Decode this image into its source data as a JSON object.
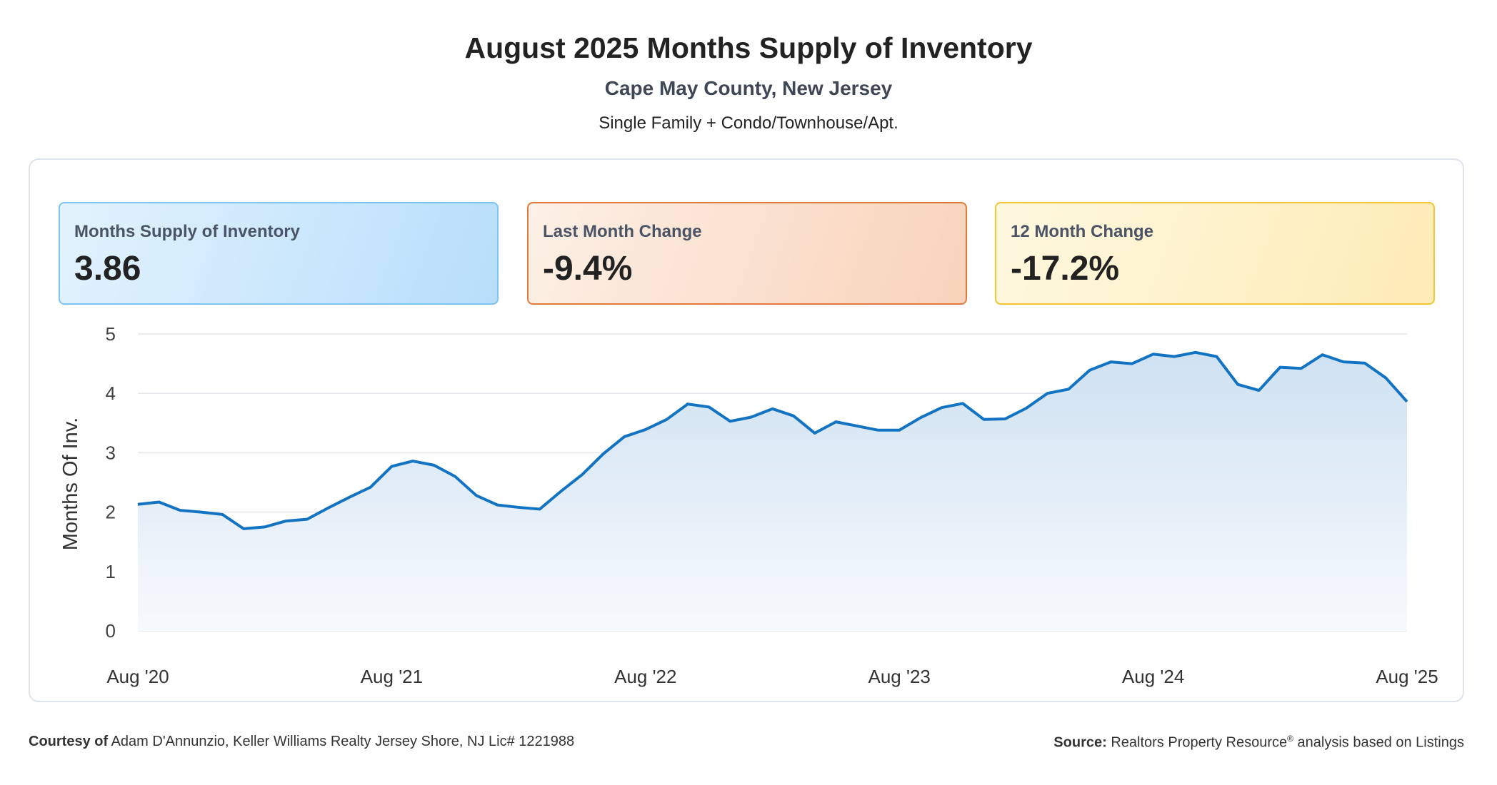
{
  "header": {
    "title": "August 2025 Months Supply of Inventory",
    "subtitle": "Cape May County, New Jersey",
    "subtitle2": "Single Family + Condo/Townhouse/Apt."
  },
  "cards": [
    {
      "label": "Months Supply of Inventory",
      "value": "3.86"
    },
    {
      "label": "Last Month Change",
      "value": "-9.4%"
    },
    {
      "label": "12 Month Change",
      "value": "-17.2%"
    }
  ],
  "footer": {
    "courtesy_label": "Courtesy of",
    "courtesy_text": "Adam D'Annunzio, Keller Williams Realty Jersey Shore, NJ Lic# 1221988",
    "source_label": "Source:",
    "source_text": "Realtors Property Resource",
    "source_mark": "®",
    "source_suffix": " analysis based on Listings"
  },
  "colors": {
    "line": "#1273c2",
    "area_top": "#cfe1f2",
    "area_bottom": "#f7fafd",
    "grid": "#e3e6ea"
  },
  "chart_data": {
    "type": "area",
    "title": "",
    "ylabel": "Months Of Inv.",
    "xlabel": "",
    "ylim": [
      0,
      5
    ],
    "yticks": [
      0,
      1,
      2,
      3,
      4,
      5
    ],
    "xticks": [
      "Aug '20",
      "Aug '21",
      "Aug '22",
      "Aug '23",
      "Aug '24",
      "Aug '25"
    ],
    "grid": true,
    "series": [
      {
        "values": [
          2.13,
          2.17,
          2.03,
          2.0,
          1.96,
          1.72,
          1.75,
          1.85,
          1.88,
          2.07,
          2.25,
          2.42,
          2.77,
          2.86,
          2.79,
          2.6,
          2.28,
          2.12,
          2.08,
          2.05,
          2.35,
          2.63,
          2.98,
          3.27,
          3.39,
          3.56,
          3.82,
          3.77,
          3.53,
          3.6,
          3.74,
          3.62,
          3.33,
          3.52,
          3.45,
          3.38,
          3.38,
          3.59,
          3.76,
          3.83,
          3.56,
          3.57,
          3.75,
          4.0,
          4.07,
          4.39,
          4.53,
          4.5,
          4.66,
          4.62,
          4.69,
          4.62,
          4.15,
          4.05,
          4.44,
          4.42,
          4.65,
          4.53,
          4.51,
          4.26,
          3.86
        ]
      }
    ]
  }
}
